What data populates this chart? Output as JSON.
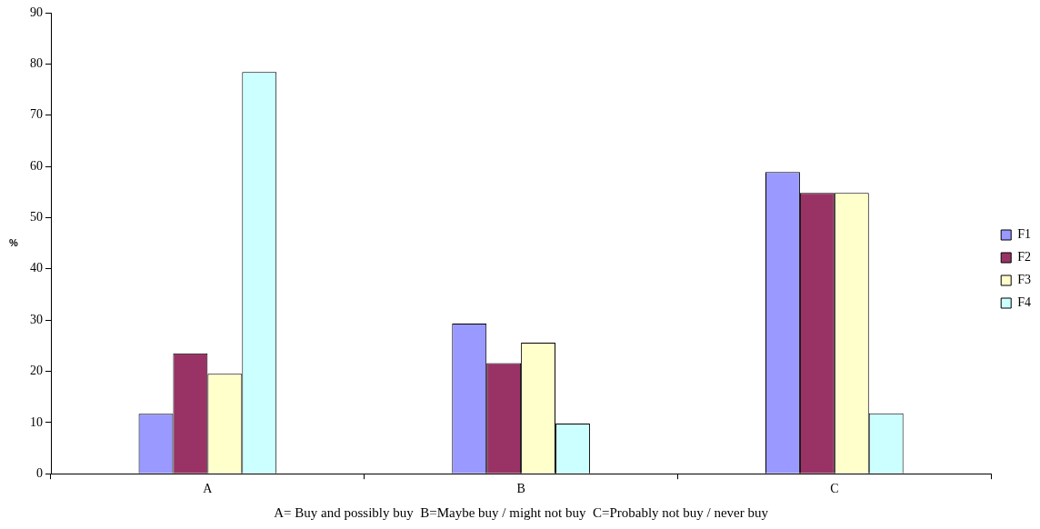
{
  "chart_data": {
    "type": "bar",
    "xlabel": "A= Buy and possibly buy  B=Maybe buy / might not buy  C=Probably not buy / never buy",
    "ylabel": "%",
    "categories": [
      "A",
      "B",
      "C"
    ],
    "series": [
      {
        "name": "F1",
        "color": "#9999ff",
        "values": [
          11.7,
          29.3,
          58.9
        ]
      },
      {
        "name": "F2",
        "color": "#993366",
        "values": [
          23.5,
          21.6,
          54.8
        ]
      },
      {
        "name": "F3",
        "color": "#ffffcc",
        "values": [
          19.5,
          25.6,
          54.8
        ]
      },
      {
        "name": "F4",
        "color": "#ccffff",
        "values": [
          78.4,
          9.8,
          11.8
        ]
      }
    ],
    "ylim": [
      0,
      90
    ],
    "yticks": [
      0,
      10,
      20,
      30,
      40,
      50,
      60,
      70,
      80,
      90
    ],
    "grid": false,
    "legend": "right"
  }
}
